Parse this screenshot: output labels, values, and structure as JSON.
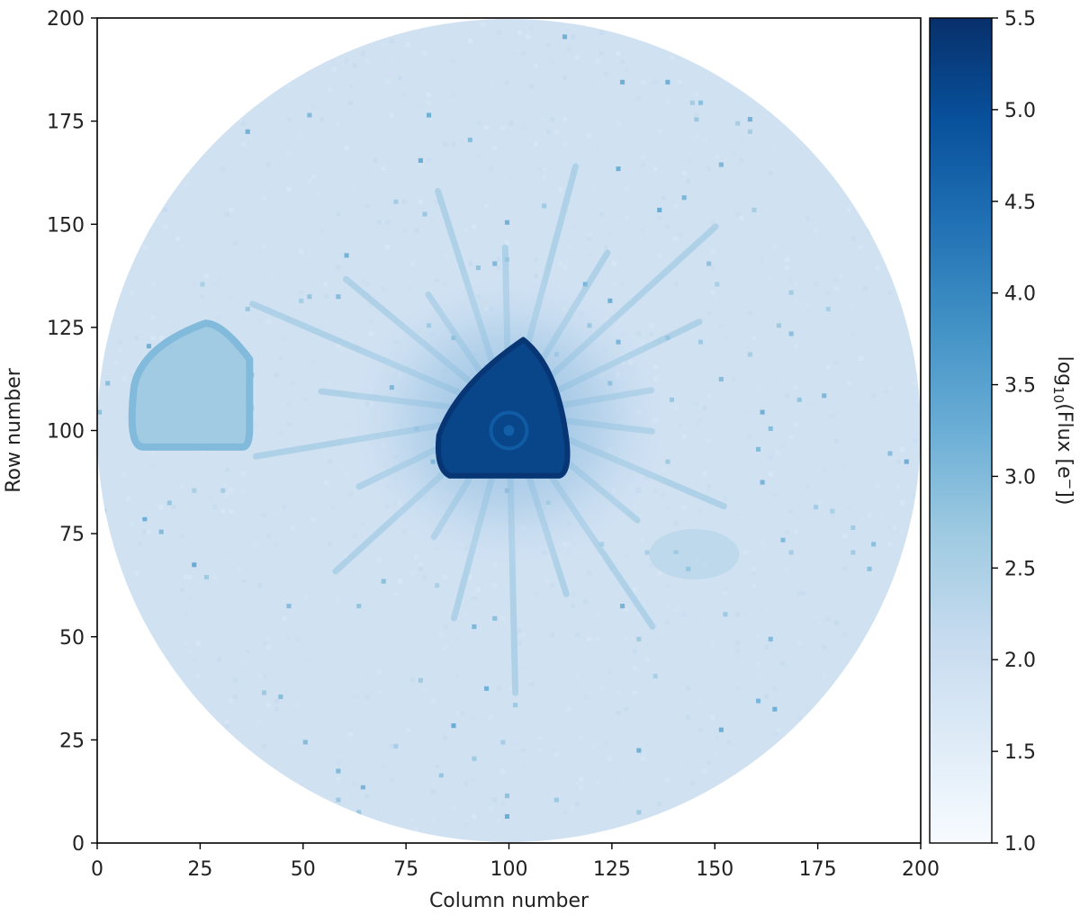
{
  "chart_data": {
    "type": "heatmap",
    "title": "",
    "xlabel": "Column number",
    "ylabel": "Row number",
    "xlim": [
      0,
      200
    ],
    "ylim": [
      0,
      200
    ],
    "x_ticks": [
      0,
      25,
      50,
      75,
      100,
      125,
      150,
      175,
      200
    ],
    "y_ticks": [
      0,
      25,
      50,
      75,
      100,
      125,
      150,
      175,
      200
    ],
    "colormap": "Blues",
    "colorbar": {
      "label_prefix": "log",
      "label_sub": "10",
      "label_mid": "(Flux [e",
      "label_sup": "−",
      "label_suffix": "])",
      "range": [
        1.0,
        5.5
      ],
      "ticks": [
        "1.0",
        "1.5",
        "2.0",
        "2.5",
        "3.0",
        "3.5",
        "4.0",
        "4.5",
        "5.0",
        "5.5"
      ]
    },
    "aperture": {
      "center": [
        100,
        100
      ],
      "radius": 100
    },
    "background_level": 1.9,
    "features": [
      {
        "name": "central bright source",
        "center": [
          100,
          104
        ],
        "peak_log_flux": 5.3,
        "shape": "rounded triangle",
        "extent_columns": [
          83,
          114
        ],
        "extent_rows": [
          89,
          122
        ]
      },
      {
        "name": "secondary source",
        "center": [
          24,
          110
        ],
        "peak_log_flux": 3.0,
        "shape": "rounded blob",
        "extent_columns": [
          9,
          37
        ],
        "extent_rows": [
          96,
          126
        ]
      },
      {
        "name": "faint ghost",
        "center": [
          145,
          70
        ],
        "peak_log_flux": 2.4
      },
      {
        "name": "diffraction spikes around central source",
        "peak_log_flux": 2.8
      }
    ]
  }
}
